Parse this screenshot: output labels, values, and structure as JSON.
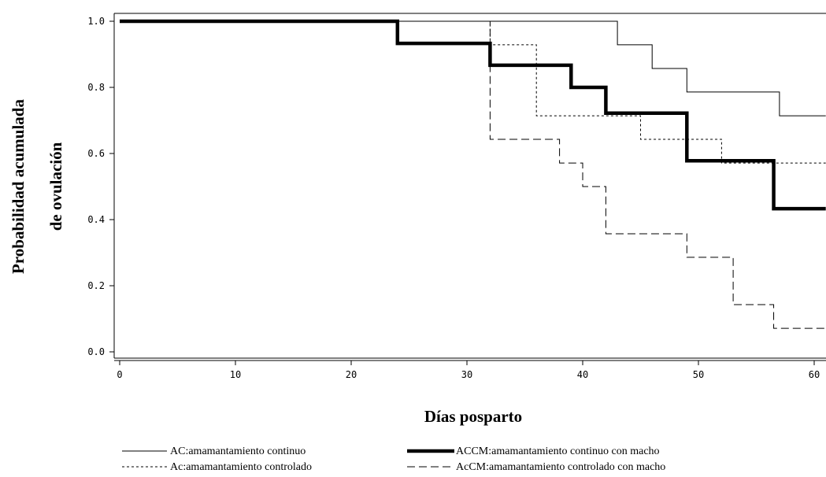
{
  "chart_data": {
    "type": "line",
    "subtype": "step",
    "title": "",
    "xlabel": "Días posparto",
    "ylabel_lines": [
      "Probabilidad acumulada",
      "de ovulación"
    ],
    "xlim": [
      0,
      61
    ],
    "ylim": [
      0,
      1.0
    ],
    "x_ticks": [
      0,
      10,
      20,
      30,
      40,
      50,
      60
    ],
    "y_ticks": [
      0.0,
      0.2,
      0.4,
      0.6,
      0.8,
      1.0
    ],
    "x_tick_labels": [
      "0",
      "10",
      "20",
      "30",
      "40",
      "50",
      "60"
    ],
    "y_tick_labels": [
      "0.0",
      "0.2",
      "0.4",
      "0.6",
      "0.8",
      "1.0"
    ],
    "grid": false,
    "legend_position": "bottom",
    "series": [
      {
        "name": "AC:amamantamiento continuo",
        "style": "thin-solid",
        "x": [
          0,
          43,
          46,
          49,
          57,
          61
        ],
        "y": [
          1.0,
          0.929,
          0.857,
          0.786,
          0.714,
          0.714
        ]
      },
      {
        "name": "ACCM:amamantamiento continuo con macho",
        "style": "thick-solid",
        "x": [
          0,
          24,
          32,
          39,
          42,
          49,
          56.5,
          61
        ],
        "y": [
          1.0,
          0.933,
          0.867,
          0.8,
          0.722,
          0.578,
          0.433,
          0.433
        ]
      },
      {
        "name": "Ac:amamantamiento controlado",
        "style": "short-dash",
        "x": [
          0,
          28,
          30,
          32,
          36,
          45,
          52,
          61
        ],
        "y": [
          1.0,
          1.0,
          1.0,
          0.929,
          0.714,
          0.643,
          0.571,
          0.571
        ]
      },
      {
        "name": "AcCM:amamantamiento controlado con  macho",
        "style": "long-dash",
        "x": [
          0,
          32,
          38,
          40,
          42,
          49,
          53,
          56.5,
          61
        ],
        "y": [
          1.0,
          0.643,
          0.571,
          0.5,
          0.357,
          0.286,
          0.143,
          0.071,
          0.071
        ]
      }
    ]
  }
}
